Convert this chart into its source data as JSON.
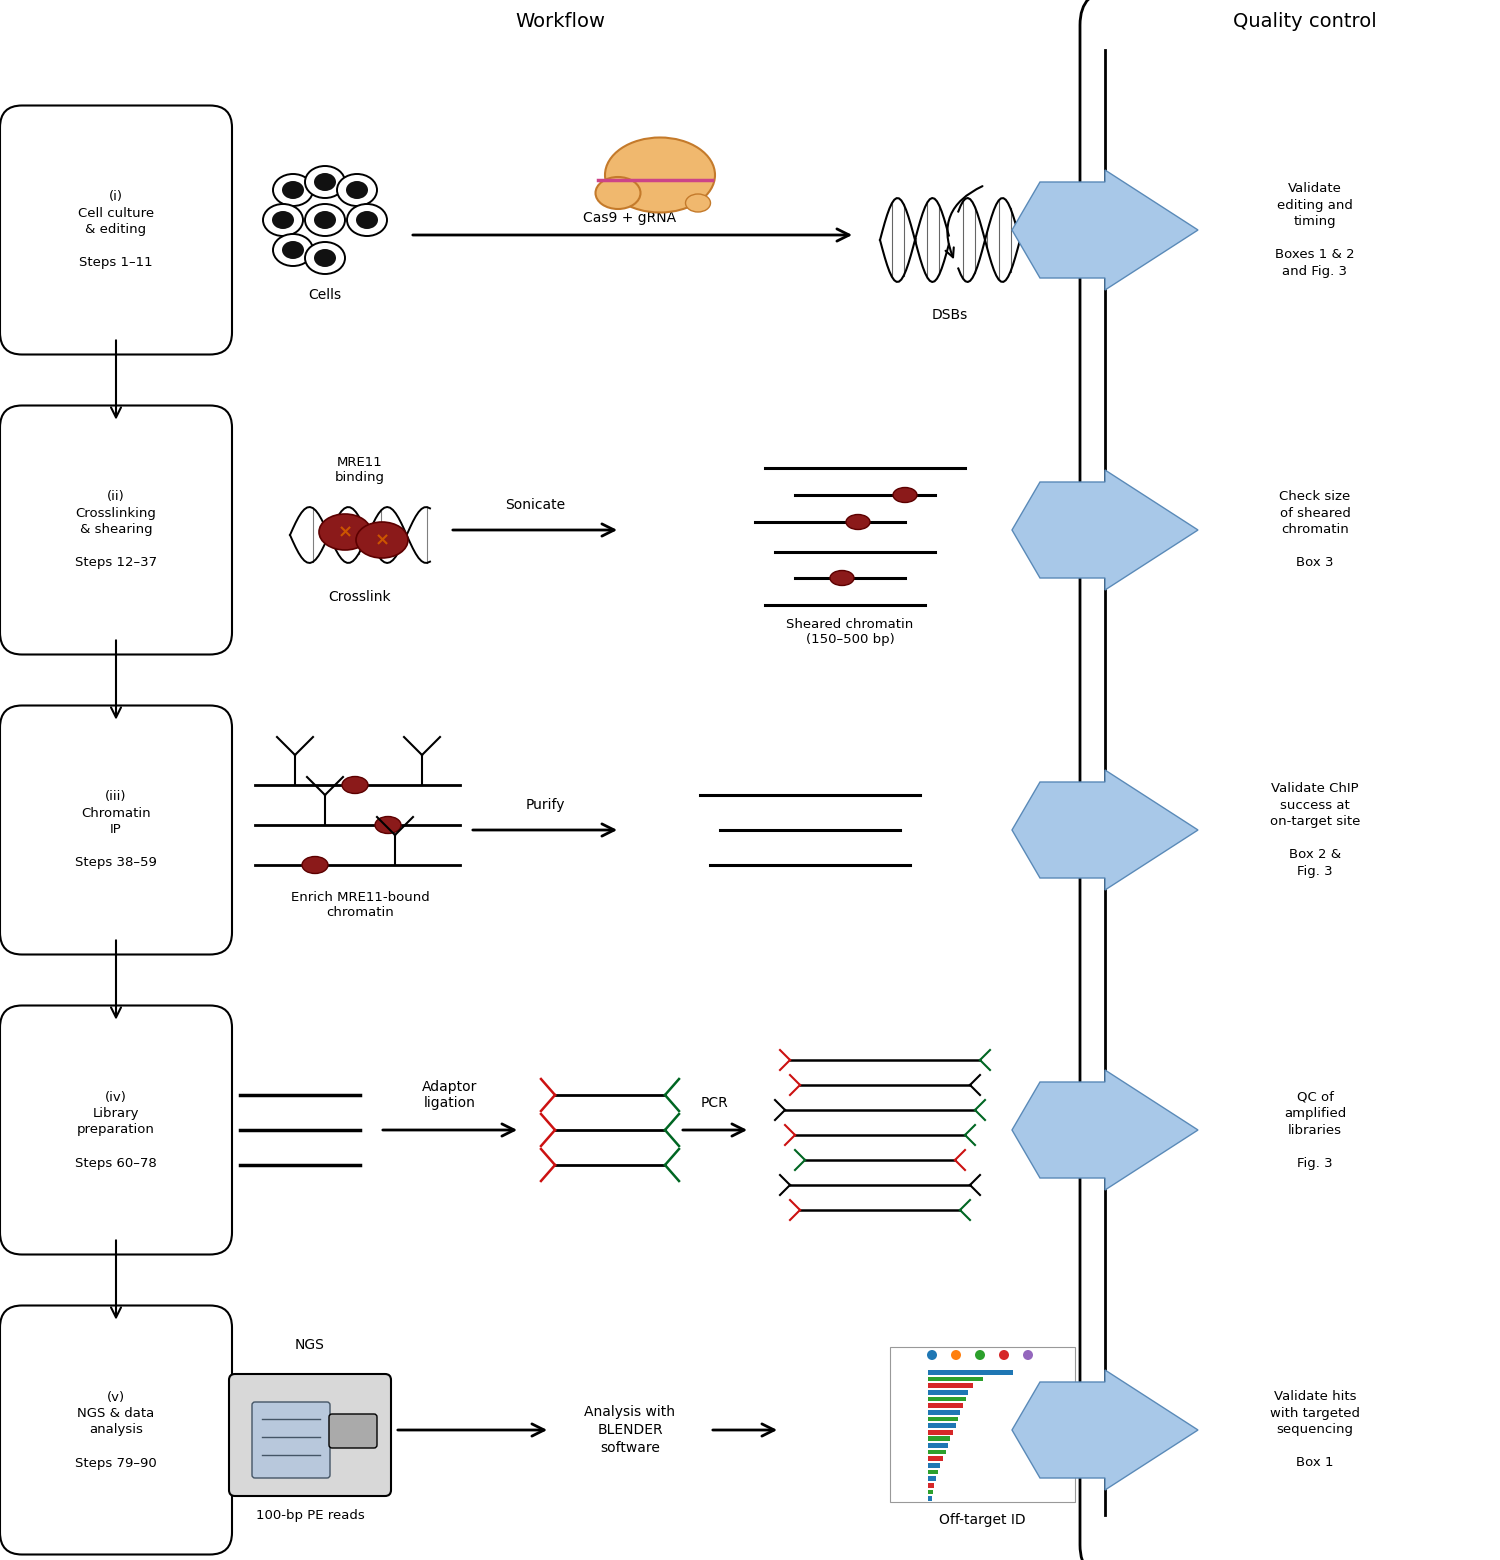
{
  "workflow_title": "Workflow",
  "qc_title": "Quality control",
  "step_labels": [
    "(i)\nCell culture\n& editing\n\nSteps 1–11",
    "(ii)\nCrosslinking\n& shearing\n\nSteps 12–37",
    "(iii)\nChromatin\nIP\n\nSteps 38–59",
    "(iv)\nLibrary\npreparation\n\nSteps 60–78",
    "(v)\nNGS & data\nanalysis\n\nSteps 79–90"
  ],
  "qc_texts": [
    "Validate\nediting and\ntiming\n\nBoxes 1 & 2\nand Fig. 3",
    "Check size\nof sheared\nchromatin\n\nBox 3",
    "Validate ChIP\nsuccess at\non-target site\n\nBox 2 &\nFig. 3",
    "QC of\namplified\nlibraries\n\nFig. 3",
    "Validate hits\nwith targeted\nsequencing\n\nBox 1"
  ],
  "row_labels": {
    "cells": "Cells",
    "cas9_grna": "Cas9 + gRNA",
    "dsbs": "DSBs",
    "mre11": "MRE11\nbinding",
    "crosslink": "Crosslink",
    "sonicate": "Sonicate",
    "sheared": "Sheared chromatin\n(150–500 bp)",
    "enrich": "Enrich MRE11-bound\nchromatin",
    "purify": "Purify",
    "adaptor": "Adaptor\nligation",
    "pcr": "PCR",
    "ngs_label": "NGS",
    "reads": "100-bp PE reads",
    "analysis": "Analysis with\nBLENDER\nsoftware",
    "offtarget": "Off-target ID"
  },
  "dark_red": "#8b1a1a",
  "dark_red_ec": "#5c0000",
  "orange_x": "#cc5500",
  "cas9_color": "#f0b86e",
  "cas9_ec": "#c47a2b",
  "cas9_pink": "#cc4488",
  "qc_arrow_fc": "#a8c8e8",
  "qc_arrow_ec": "#5a8ab8",
  "cell_fc": "white",
  "cell_ec": "black",
  "cell_nucleus": "#111111"
}
